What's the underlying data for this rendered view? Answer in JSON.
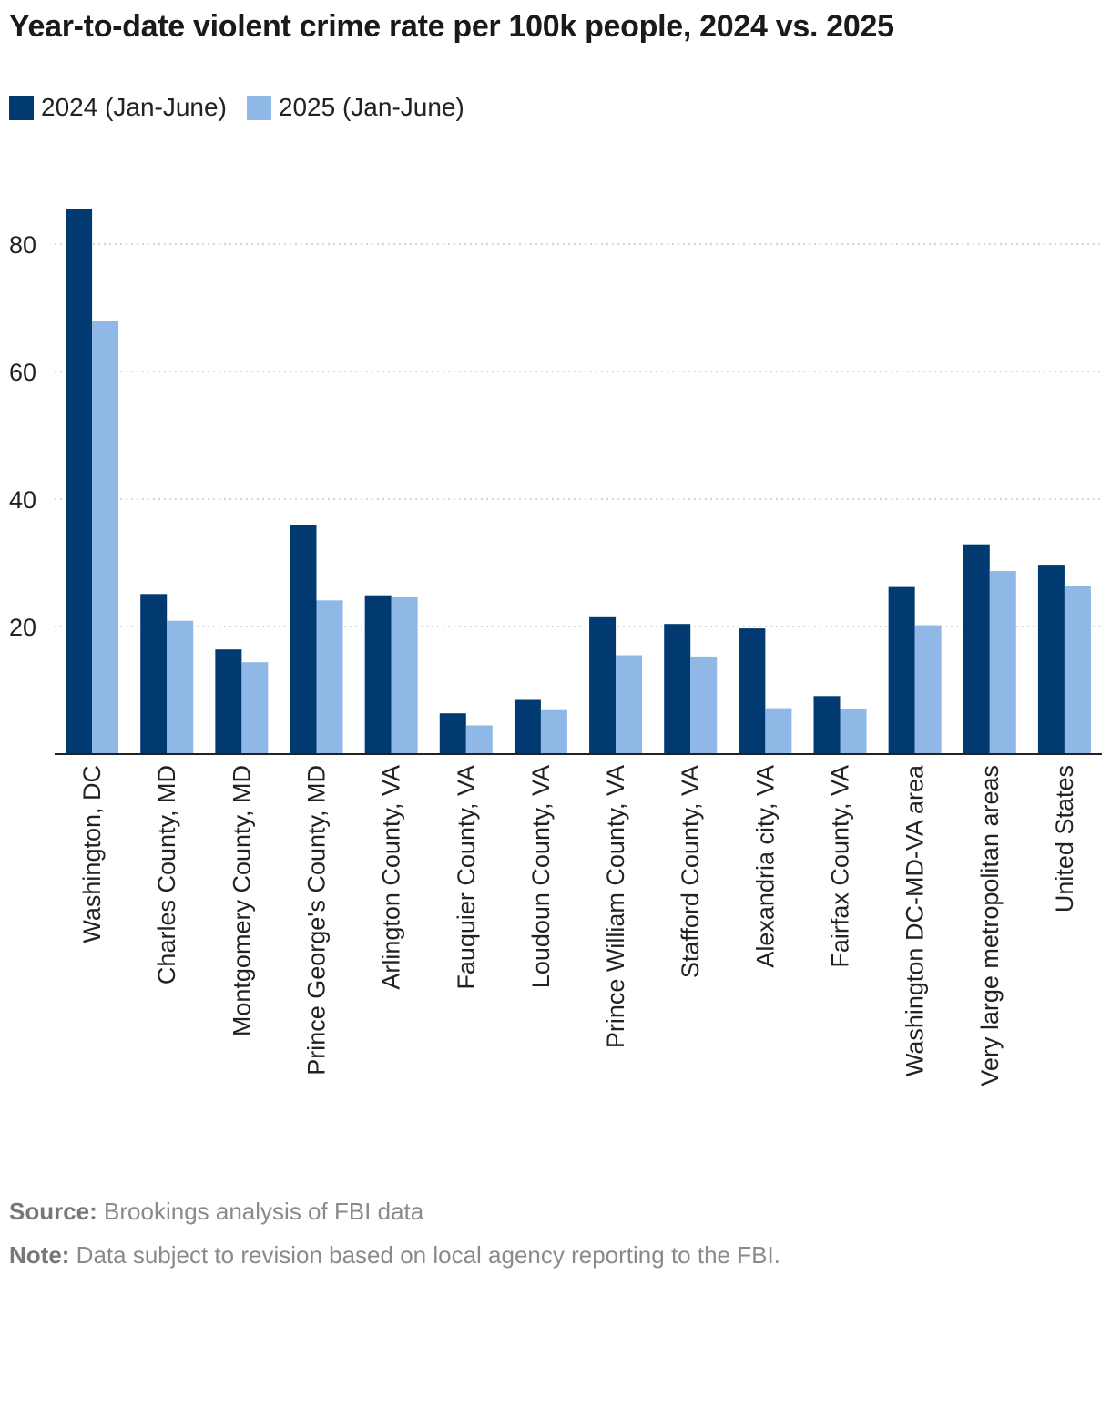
{
  "title": "Year-to-date violent crime rate per 100k people, 2024 vs. 2025",
  "legend": [
    {
      "label": "2024 (Jan-June)",
      "color": "#003a70"
    },
    {
      "label": "2025 (Jan-June)",
      "color": "#8fb8e6"
    }
  ],
  "footer": {
    "source_label": "Source:",
    "source_text": "Brookings analysis of FBI data",
    "note_label": "Note:",
    "note_text": "Data subject to revision based on local agency reporting to the FBI."
  },
  "chart_data": {
    "type": "bar",
    "title": "Year-to-date violent crime rate per 100k people, 2024 vs. 2025",
    "xlabel": "",
    "ylabel": "",
    "ylim": [
      0,
      90
    ],
    "yticks": [
      20,
      40,
      60,
      80
    ],
    "grid": true,
    "legend_position": "top-left",
    "categories": [
      "Washington, DC",
      "Charles County, MD",
      "Montgomery County, MD",
      "Prince George's County, MD",
      "Arlington County, VA",
      "Fauquier County, VA",
      "Loudoun County, VA",
      "Prince William County, VA",
      "Stafford County, VA",
      "Alexandria city, VA",
      "Fairfax County, VA",
      "Washington DC-MD-VA area",
      "Very large metropolitan areas",
      "United States"
    ],
    "series": [
      {
        "name": "2024 (Jan-June)",
        "color": "#003a70",
        "values": [
          85.5,
          25.1,
          16.4,
          36.0,
          24.9,
          6.4,
          8.5,
          21.6,
          20.4,
          19.7,
          9.1,
          26.2,
          32.9,
          29.7
        ]
      },
      {
        "name": "2025 (Jan-June)",
        "color": "#8fb8e6",
        "values": [
          67.9,
          20.9,
          14.4,
          24.1,
          24.6,
          4.5,
          6.9,
          15.5,
          15.3,
          7.2,
          7.1,
          20.2,
          28.7,
          26.3
        ]
      }
    ]
  }
}
